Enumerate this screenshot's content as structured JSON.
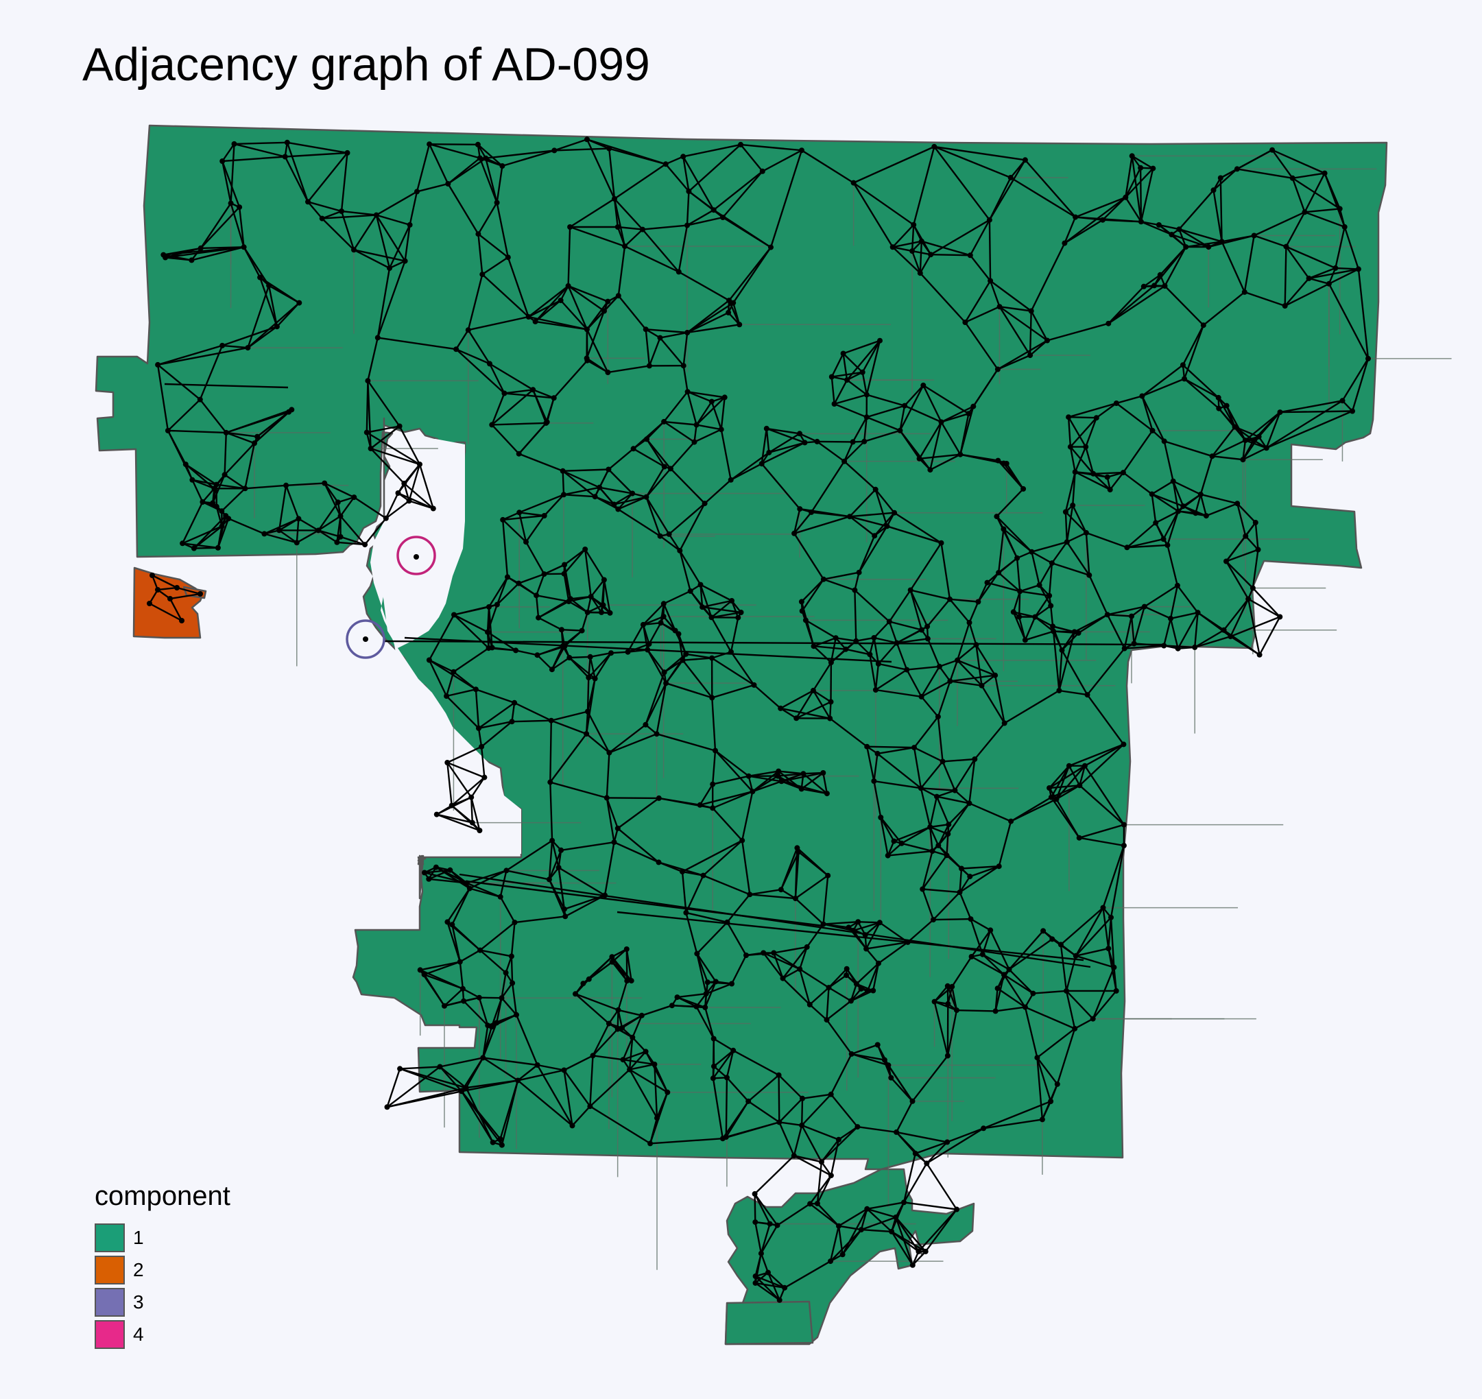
{
  "title": "Adjacency graph of AD-099",
  "legend": {
    "title": "component",
    "items": [
      {
        "label": "1",
        "color": "#1b9e77"
      },
      {
        "label": "2",
        "color": "#d95f02"
      },
      {
        "label": "3",
        "color": "#7570b3"
      },
      {
        "label": "4",
        "color": "#e7298a"
      }
    ]
  },
  "map": {
    "region_fill": "#1f9166",
    "region_border_color": "#555555",
    "edge_color": "#000000",
    "node_color": "#000000",
    "marker_colors": {
      "component_3": "#5e5a9e",
      "component_4": "#c2237a"
    }
  }
}
